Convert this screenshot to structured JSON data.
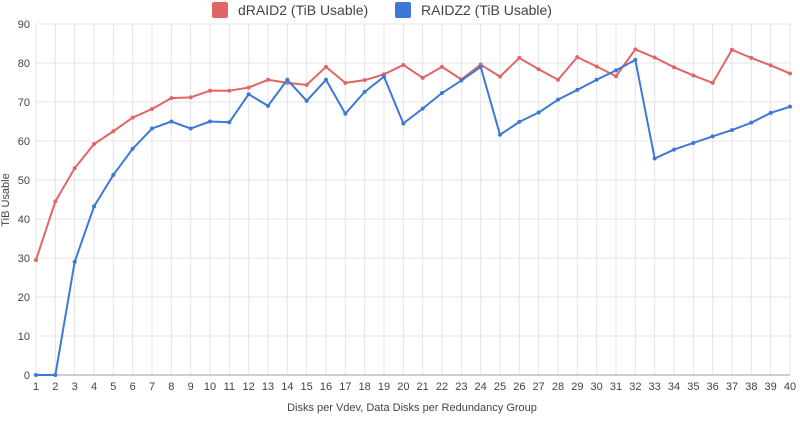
{
  "chart_data": {
    "type": "line",
    "xlabel": "Disks per Vdev, Data Disks per Redundancy Group",
    "ylabel": "TiB Usable",
    "ylim": [
      0,
      90
    ],
    "yticks": [
      0,
      10,
      20,
      30,
      40,
      50,
      60,
      70,
      80,
      90
    ],
    "xlim": [
      1,
      40
    ],
    "x": [
      1,
      2,
      3,
      4,
      5,
      6,
      7,
      8,
      9,
      10,
      11,
      12,
      13,
      14,
      15,
      16,
      17,
      18,
      19,
      20,
      21,
      22,
      23,
      24,
      25,
      26,
      27,
      28,
      29,
      30,
      31,
      32,
      33,
      34,
      35,
      36,
      37,
      38,
      39,
      40
    ],
    "grid": true,
    "legend_position": "top",
    "series": [
      {
        "name": "dRAID2 (TiB Usable)",
        "color": "#e06666",
        "values": [
          29.5,
          44.5,
          53,
          59.2,
          62.5,
          66,
          68.2,
          71,
          71.2,
          72.9,
          72.9,
          73.7,
          75.7,
          74.9,
          74.4,
          79,
          74.9,
          75.6,
          77.1,
          79.5,
          76.2,
          79,
          75.8,
          79.6,
          76.5,
          81.3,
          78.4,
          75.7,
          81.5,
          79.1,
          76.6,
          83.5,
          81.4,
          78.9,
          76.8,
          74.9,
          83.4,
          81.3,
          79.4,
          77.3
        ]
      },
      {
        "name": "RAIDZ2 (TiB Usable)",
        "color": "#3d78d8",
        "values": [
          0,
          0,
          29,
          43.2,
          51.3,
          58,
          63.2,
          65,
          63.2,
          65,
          64.8,
          72,
          69,
          75.7,
          70.3,
          75.7,
          67,
          72.6,
          76.5,
          64.5,
          68.3,
          72.3,
          75.5,
          79,
          61.6,
          64.9,
          67.3,
          70.6,
          73.1,
          75.7,
          78.1,
          80.8,
          55.5,
          57.8,
          59.5,
          61.2,
          62.8,
          64.7,
          67.2,
          68.8
        ]
      }
    ]
  }
}
